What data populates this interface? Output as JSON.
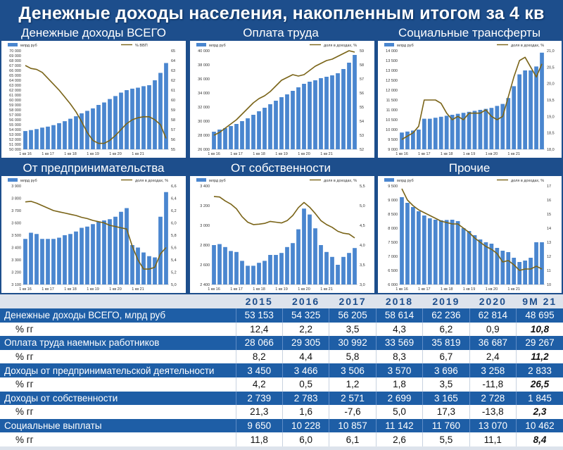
{
  "page": {
    "title": "Денежные доходы населения, накопленным итогом за 4 кв"
  },
  "colors": {
    "bar": "#4a86cf",
    "line": "#7a6418",
    "negative": "#d8141b",
    "header_bg": "#1d4e8c"
  },
  "panels": [
    {
      "title": "Денежные доходы ВСЕГО",
      "chart_data": {
        "type": "bar",
        "left_unit": "млрд руб",
        "right_unit": "% ВВП",
        "left_ticks": [
          "50 000",
          "51 000",
          "52 000",
          "53 000",
          "54 000",
          "55 000",
          "56 000",
          "57 000",
          "58 000",
          "59 000",
          "60 000",
          "61 000",
          "62 000",
          "63 000",
          "64 000",
          "65 000",
          "66 000",
          "67 000",
          "68 000",
          "69 000",
          "70 000"
        ],
        "right_ticks": [
          "55",
          "56",
          "57",
          "58",
          "59",
          "60",
          "61",
          "62",
          "63",
          "64",
          "65"
        ],
        "ylim": [
          50000,
          70000
        ],
        "y2lim": [
          55,
          65
        ],
        "x_tick_labels": [
          "1 кв 16",
          "1 кв 17",
          "1 кв 18",
          "1 кв 19",
          "1 кв 20",
          "1 кв 21"
        ],
        "bar_values": [
          53700,
          53900,
          54100,
          54400,
          54600,
          54900,
          55300,
          55700,
          56200,
          56700,
          57300,
          57800,
          58300,
          59000,
          59500,
          60200,
          60800,
          61500,
          62000,
          62300,
          62500,
          62800,
          63000,
          64000,
          65500,
          67500
        ],
        "line_values": [
          63.5,
          63.2,
          63.1,
          62.8,
          62.2,
          61.6,
          61.0,
          60.3,
          59.6,
          58.8,
          57.8,
          56.7,
          55.9,
          55.6,
          55.6,
          55.9,
          56.4,
          57.0,
          57.6,
          58.0,
          58.2,
          58.3,
          58.3,
          58.0,
          57.5,
          56.1
        ]
      }
    },
    {
      "title": "Оплата труда",
      "chart_data": {
        "type": "bar",
        "left_unit": "млрд руб",
        "right_unit": "доля в доходах, %",
        "left_ticks": [
          "26 000",
          "28 000",
          "30 000",
          "32 000",
          "34 000",
          "36 000",
          "38 000",
          "40 000"
        ],
        "right_ticks": [
          "52",
          "53",
          "54",
          "55",
          "56",
          "57",
          "58",
          "59"
        ],
        "ylim": [
          26000,
          40000
        ],
        "y2lim": [
          52,
          59
        ],
        "x_tick_labels": [
          "1 кв 16",
          "1 кв 17",
          "1 кв 18",
          "1 кв 19",
          "1 кв 20",
          "1 кв 21"
        ],
        "bar_values": [
          28500,
          28800,
          29000,
          29300,
          29600,
          30000,
          30400,
          30900,
          31400,
          31900,
          32400,
          32900,
          33400,
          33800,
          34300,
          34800,
          35300,
          35600,
          35800,
          36100,
          36300,
          36500,
          36800,
          37400,
          38300,
          39400
        ],
        "line_values": [
          53.0,
          53.2,
          53.5,
          53.8,
          54.1,
          54.5,
          54.9,
          55.3,
          55.6,
          55.8,
          56.1,
          56.5,
          56.9,
          57.1,
          57.3,
          57.2,
          57.3,
          57.6,
          57.9,
          58.1,
          58.3,
          58.4,
          58.6,
          58.8,
          59.0,
          58.9
        ]
      }
    },
    {
      "title": "Социальные трансферты",
      "chart_data": {
        "type": "bar",
        "left_unit": "млрд руб",
        "right_unit": "доля в доходах, %",
        "left_ticks": [
          "9 000",
          "9 500",
          "10 000",
          "10 500",
          "11 000",
          "11 500",
          "12 000",
          "12 500",
          "13 000",
          "13 500",
          "14 000"
        ],
        "right_ticks": [
          "18,0",
          "18,5",
          "19,0",
          "19,5",
          "20,0",
          "20,5",
          "21,0"
        ],
        "ylim": [
          9000,
          14000
        ],
        "y2lim": [
          18,
          21
        ],
        "x_tick_labels": [
          "1 кв 16",
          "1 кв 17",
          "1 кв 18",
          "1 кв 19",
          "1 кв 20",
          "1 кв 21"
        ],
        "bar_values": [
          9850,
          9900,
          9950,
          10000,
          10550,
          10550,
          10600,
          10650,
          10700,
          10750,
          10800,
          10850,
          10900,
          10950,
          11000,
          11050,
          11100,
          11200,
          11300,
          11600,
          12200,
          12800,
          13000,
          13000,
          13200,
          13900
        ],
        "line_values": [
          18.3,
          18.4,
          18.5,
          18.7,
          19.5,
          19.5,
          19.5,
          19.4,
          19.1,
          18.9,
          19.0,
          18.9,
          19.1,
          19.1,
          19.1,
          19.2,
          19.0,
          18.9,
          19.0,
          19.6,
          20.2,
          20.7,
          20.8,
          20.5,
          20.2,
          20.6
        ]
      }
    },
    {
      "title": "От предпринимательства",
      "chart_data": {
        "type": "bar",
        "left_unit": "млрд руб",
        "right_unit": "доля в доходах, %",
        "left_ticks": [
          "3 100",
          "3 200",
          "3 300",
          "3 400",
          "3 500",
          "3 600",
          "3 700",
          "3 800",
          "3 900"
        ],
        "right_ticks": [
          "5,0",
          "5,2",
          "5,4",
          "5,6",
          "5,8",
          "6,0",
          "6,2",
          "6,4",
          "6,6"
        ],
        "ylim": [
          3100,
          3900
        ],
        "y2lim": [
          5.0,
          6.6
        ],
        "x_tick_labels": [
          "1 кв 16",
          "1 кв 17",
          "1 кв 18",
          "1 кв 19",
          "1 кв 20",
          "1 кв 21"
        ],
        "bar_values": [
          3470,
          3520,
          3510,
          3470,
          3470,
          3470,
          3480,
          3500,
          3510,
          3530,
          3560,
          3570,
          3590,
          3610,
          3620,
          3630,
          3650,
          3690,
          3720,
          3420,
          3400,
          3360,
          3330,
          3320,
          3650,
          3850
        ],
        "line_values": [
          6.34,
          6.35,
          6.32,
          6.28,
          6.24,
          6.2,
          6.18,
          6.16,
          6.14,
          6.12,
          6.09,
          6.07,
          6.04,
          6.02,
          6.0,
          5.96,
          5.94,
          5.92,
          5.9,
          5.62,
          5.4,
          5.25,
          5.25,
          5.28,
          5.5,
          5.6
        ]
      }
    },
    {
      "title": "От собственности",
      "chart_data": {
        "type": "bar",
        "left_unit": "млрд руб",
        "right_unit": "доля в доходах, %",
        "left_ticks": [
          "2 400",
          "2 600",
          "2 800",
          "3 000",
          "3 200",
          "3 400"
        ],
        "right_ticks": [
          "3,0",
          "3,5",
          "4,0",
          "4,5",
          "5,0",
          "5,5"
        ],
        "ylim": [
          2400,
          3400
        ],
        "y2lim": [
          3.0,
          5.5
        ],
        "x_tick_labels": [
          "1 кв 16",
          "1 кв 17",
          "1 кв 18",
          "1 кв 19",
          "1 кв 20",
          "1 кв 21"
        ],
        "bar_values": [
          2800,
          2810,
          2780,
          2740,
          2730,
          2640,
          2590,
          2590,
          2620,
          2640,
          2700,
          2700,
          2720,
          2780,
          2820,
          2960,
          3170,
          3110,
          2970,
          2800,
          2730,
          2680,
          2600,
          2680,
          2720,
          2770
        ],
        "line_values": [
          5.23,
          5.22,
          5.12,
          5.04,
          4.92,
          4.72,
          4.58,
          4.52,
          4.53,
          4.55,
          4.6,
          4.58,
          4.56,
          4.62,
          4.75,
          4.95,
          5.08,
          4.96,
          4.8,
          4.62,
          4.52,
          4.45,
          4.35,
          4.3,
          4.28,
          4.18
        ]
      }
    },
    {
      "title": "Прочие",
      "chart_data": {
        "type": "bar",
        "left_unit": "млрд руб",
        "right_unit": "доля в доходах, %",
        "left_ticks": [
          "6 000",
          "6 500",
          "7 000",
          "7 500",
          "8 000",
          "8 500",
          "9 000",
          "9 500"
        ],
        "right_ticks": [
          "10",
          "11",
          "12",
          "13",
          "14",
          "15",
          "16",
          "17"
        ],
        "ylim": [
          6000,
          9500
        ],
        "y2lim": [
          10,
          17
        ],
        "x_tick_labels": [
          "1 кв 16",
          "1 кв 17",
          "1 кв 18",
          "1 кв 19",
          "1 кв 20",
          "1 кв 21"
        ],
        "bar_values": [
          9100,
          8900,
          8750,
          8600,
          8450,
          8350,
          8300,
          8280,
          8290,
          8300,
          8250,
          8000,
          7900,
          7750,
          7600,
          7500,
          7450,
          7300,
          7200,
          7150,
          6950,
          6800,
          6850,
          6950,
          7500,
          7500
        ],
        "line_values": [
          16.8,
          16.0,
          15.6,
          15.3,
          15.1,
          14.9,
          14.7,
          14.5,
          14.4,
          14.3,
          14.3,
          14.0,
          13.7,
          13.3,
          13.0,
          12.7,
          12.5,
          12.2,
          11.6,
          11.7,
          11.4,
          11.0,
          11.1,
          11.1,
          11.3,
          11.1
        ]
      }
    }
  ],
  "table": {
    "years": [
      "2015",
      "2016",
      "2017",
      "2018",
      "2019",
      "2020",
      "9М 21"
    ],
    "rows": [
      {
        "label": "Денежные доходы ВСЕГО, млрд руб",
        "kind": "main",
        "values": [
          "53 153",
          "54 325",
          "56 205",
          "58 614",
          "62 236",
          "62 814",
          "48 695"
        ]
      },
      {
        "label": "% гг",
        "kind": "sub",
        "values": [
          "12,4",
          "2,2",
          "3,5",
          "4,3",
          "6,2",
          "0,9",
          "10,8"
        ]
      },
      {
        "label": "Оплата труда наемных работников",
        "kind": "main",
        "values": [
          "28 066",
          "29 305",
          "30 992",
          "33 569",
          "35 819",
          "36 687",
          "29 267"
        ]
      },
      {
        "label": "% гг",
        "kind": "sub",
        "values": [
          "8,2",
          "4,4",
          "5,8",
          "8,3",
          "6,7",
          "2,4",
          "11,2"
        ]
      },
      {
        "label": "Доходы от предпринимательской деятельности",
        "kind": "main",
        "values": [
          "3 450",
          "3 466",
          "3 506",
          "3 570",
          "3 696",
          "3 258",
          "2 833"
        ]
      },
      {
        "label": "% гг",
        "kind": "sub",
        "values": [
          "4,2",
          "0,5",
          "1,2",
          "1,8",
          "3,5",
          "-11,8",
          "26,5"
        ]
      },
      {
        "label": "Доходы от собственности",
        "kind": "main",
        "values": [
          "2 739",
          "2 783",
          "2 571",
          "2 699",
          "3 165",
          "2 728",
          "1 845"
        ]
      },
      {
        "label": "% гг",
        "kind": "sub",
        "values": [
          "21,3",
          "1,6",
          "-7,6",
          "5,0",
          "17,3",
          "-13,8",
          "2,3"
        ]
      },
      {
        "label": "Социальные выплаты",
        "kind": "main",
        "values": [
          "9 650",
          "10 228",
          "10 857",
          "11 142",
          "11 760",
          "13 070",
          "10 462"
        ]
      },
      {
        "label": "% гг",
        "kind": "sub",
        "values": [
          "11,8",
          "6,0",
          "6,1",
          "2,6",
          "5,5",
          "11,1",
          "8,4"
        ]
      }
    ]
  }
}
